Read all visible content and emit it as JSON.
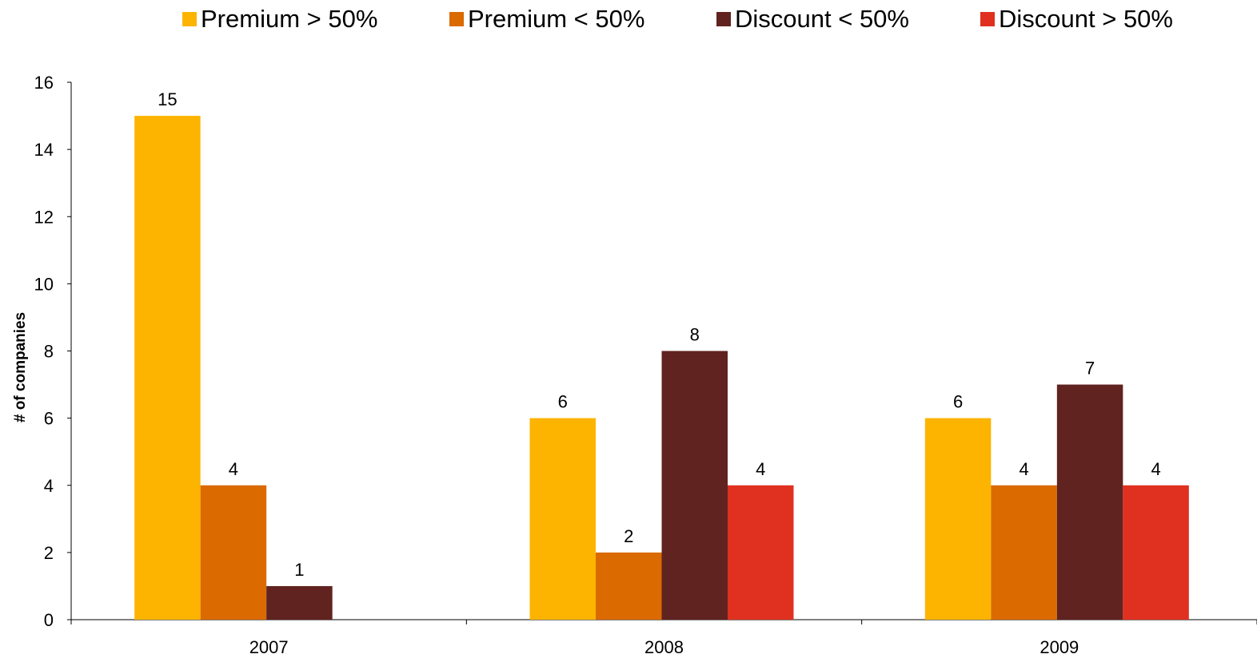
{
  "chart_data": {
    "type": "bar",
    "categories": [
      "2007",
      "2008",
      "2009"
    ],
    "series": [
      {
        "name": "Premium > 50%",
        "values": [
          15,
          6,
          6
        ],
        "color": "#FDB400"
      },
      {
        "name": "Premium < 50%",
        "values": [
          4,
          2,
          4
        ],
        "color": "#DB6A00"
      },
      {
        "name": "Discount < 50%",
        "values": [
          1,
          8,
          7
        ],
        "color": "#602320"
      },
      {
        "name": "Discount > 50%",
        "values": [
          0,
          4,
          4
        ],
        "color": "#E03020"
      }
    ],
    "ylabel": "# of companies",
    "xlabel": "",
    "ylim": [
      0,
      16
    ],
    "yticks": [
      "0",
      "2",
      "4",
      "6",
      "8",
      "10",
      "12",
      "14",
      "16"
    ],
    "data_labels": [
      [
        "15",
        "4",
        "1",
        ""
      ],
      [
        "6",
        "2",
        "8",
        "4"
      ],
      [
        "6",
        "4",
        "7",
        "4"
      ]
    ],
    "legend_position": "top",
    "grid": false
  }
}
